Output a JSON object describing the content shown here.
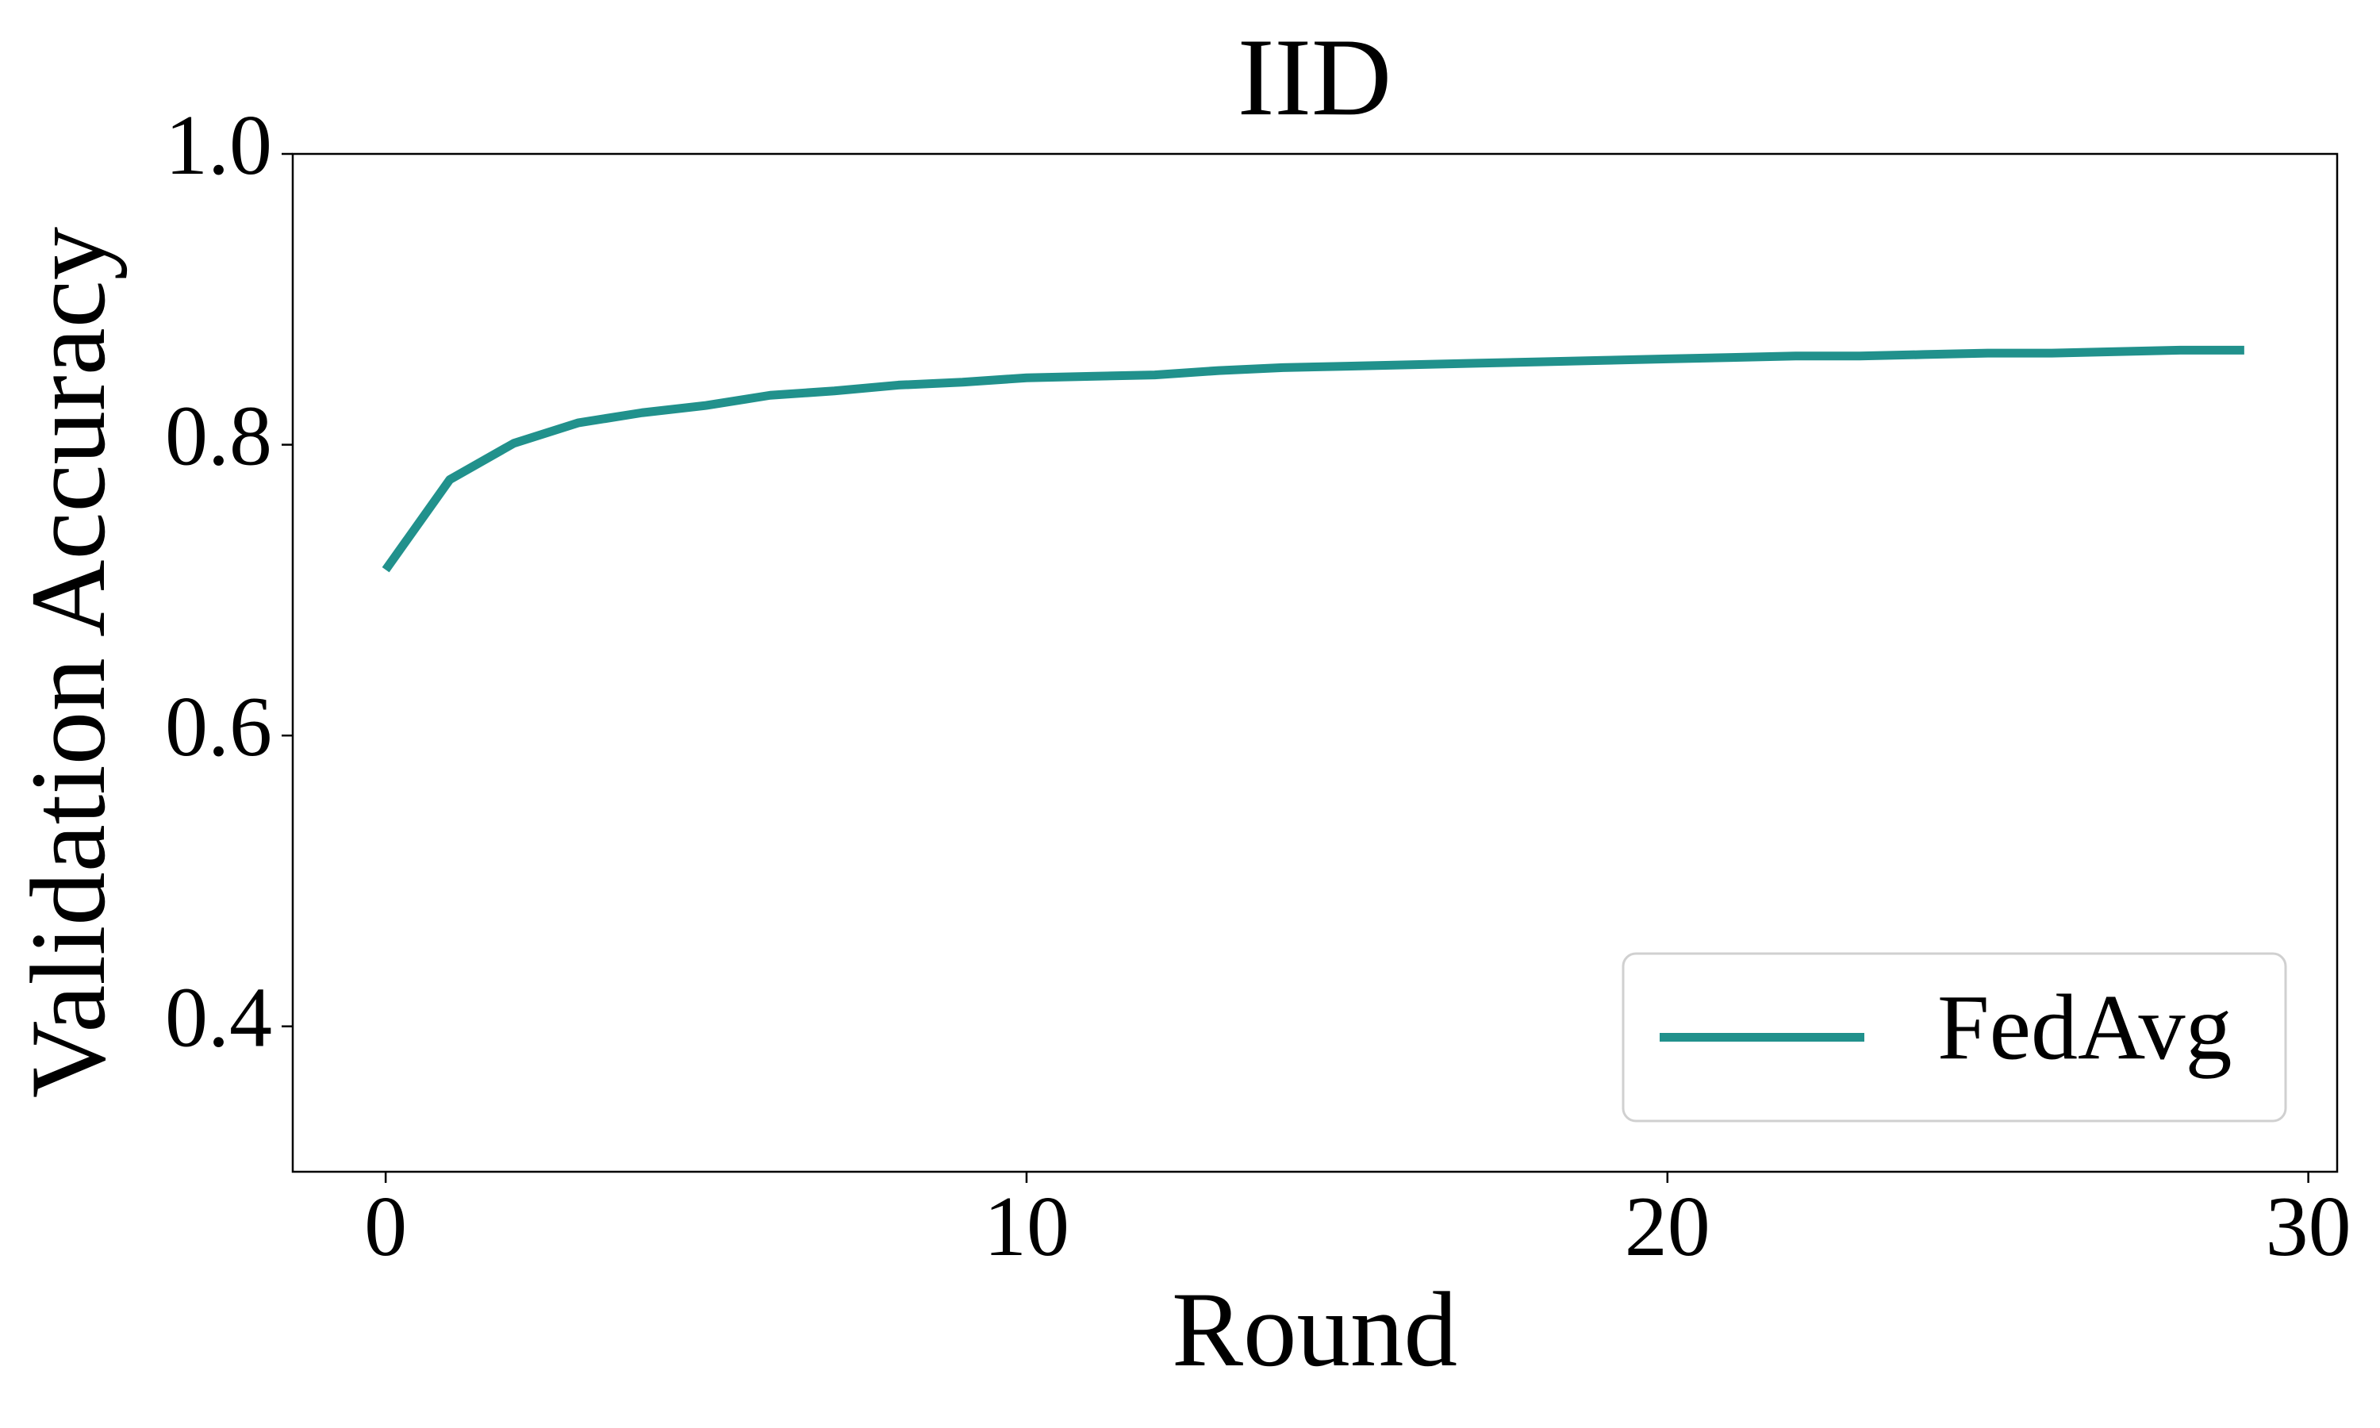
{
  "chart_data": {
    "type": "line",
    "title": "IID",
    "x_label": "Round",
    "y_label": "Validation Accuracy",
    "x": [
      0,
      1,
      2,
      3,
      4,
      5,
      6,
      7,
      8,
      9,
      10,
      11,
      12,
      13,
      14,
      15,
      16,
      17,
      18,
      19,
      20,
      21,
      22,
      23,
      24,
      25,
      26,
      27,
      28,
      29
    ],
    "series": [
      {
        "name": "FedAvg",
        "color": "#21918c",
        "values": [
          0.714,
          0.776,
          0.801,
          0.815,
          0.822,
          0.827,
          0.834,
          0.837,
          0.841,
          0.843,
          0.846,
          0.847,
          0.848,
          0.851,
          0.853,
          0.854,
          0.855,
          0.856,
          0.857,
          0.858,
          0.859,
          0.86,
          0.861,
          0.861,
          0.862,
          0.863,
          0.863,
          0.864,
          0.865,
          0.865
        ]
      }
    ],
    "xlim": [
      -1.45,
      30.45
    ],
    "ylim": [
      0.3,
      1.0
    ],
    "xticks": [
      0,
      10,
      20,
      30
    ],
    "yticks": [
      0.4,
      0.6,
      0.8,
      {
        "value": 1,
        "label": "1.0"
      }
    ],
    "grid": false,
    "legend": "lower right"
  }
}
